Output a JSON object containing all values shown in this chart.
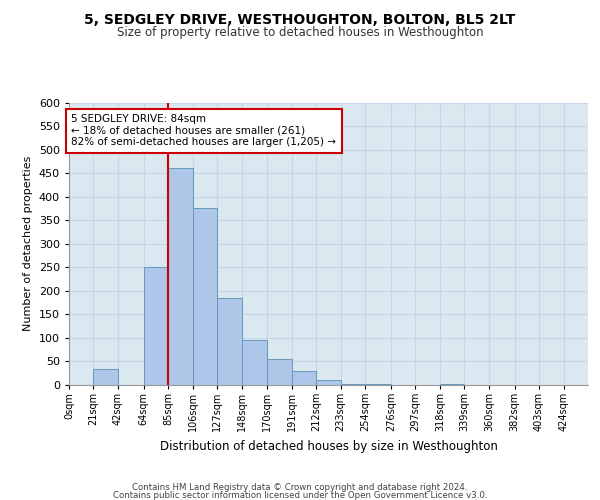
{
  "title1": "5, SEDGLEY DRIVE, WESTHOUGHTON, BOLTON, BL5 2LT",
  "title2": "Size of property relative to detached houses in Westhoughton",
  "xlabel": "Distribution of detached houses by size in Westhoughton",
  "ylabel": "Number of detached properties",
  "categories": [
    "0sqm",
    "21sqm",
    "42sqm",
    "64sqm",
    "85sqm",
    "106sqm",
    "127sqm",
    "148sqm",
    "170sqm",
    "191sqm",
    "212sqm",
    "233sqm",
    "254sqm",
    "276sqm",
    "297sqm",
    "318sqm",
    "339sqm",
    "360sqm",
    "382sqm",
    "403sqm",
    "424sqm"
  ],
  "bin_edges": [
    0,
    21,
    42,
    64,
    85,
    106,
    127,
    148,
    170,
    191,
    212,
    233,
    254,
    276,
    297,
    318,
    339,
    360,
    382,
    403,
    424,
    445
  ],
  "bar_heights": [
    1,
    35,
    0,
    250,
    460,
    375,
    185,
    95,
    55,
    30,
    10,
    3,
    3,
    1,
    0,
    2,
    0,
    0,
    1,
    0,
    1
  ],
  "bar_color": "#aec6e8",
  "bar_edge_color": "#6699bb",
  "grid_color": "#c8d4e8",
  "background_color": "#dce8f0",
  "vline_x": 85,
  "vline_color": "#cc0000",
  "annotation_text": "5 SEDGLEY DRIVE: 84sqm\n← 18% of detached houses are smaller (261)\n82% of semi-detached houses are larger (1,205) →",
  "annotation_box_facecolor": "#ffffff",
  "annotation_box_edge": "#cc0000",
  "ylim": [
    0,
    600
  ],
  "yticks": [
    0,
    50,
    100,
    150,
    200,
    250,
    300,
    350,
    400,
    450,
    500,
    550,
    600
  ],
  "footer1": "Contains HM Land Registry data © Crown copyright and database right 2024.",
  "footer2": "Contains public sector information licensed under the Open Government Licence v3.0."
}
